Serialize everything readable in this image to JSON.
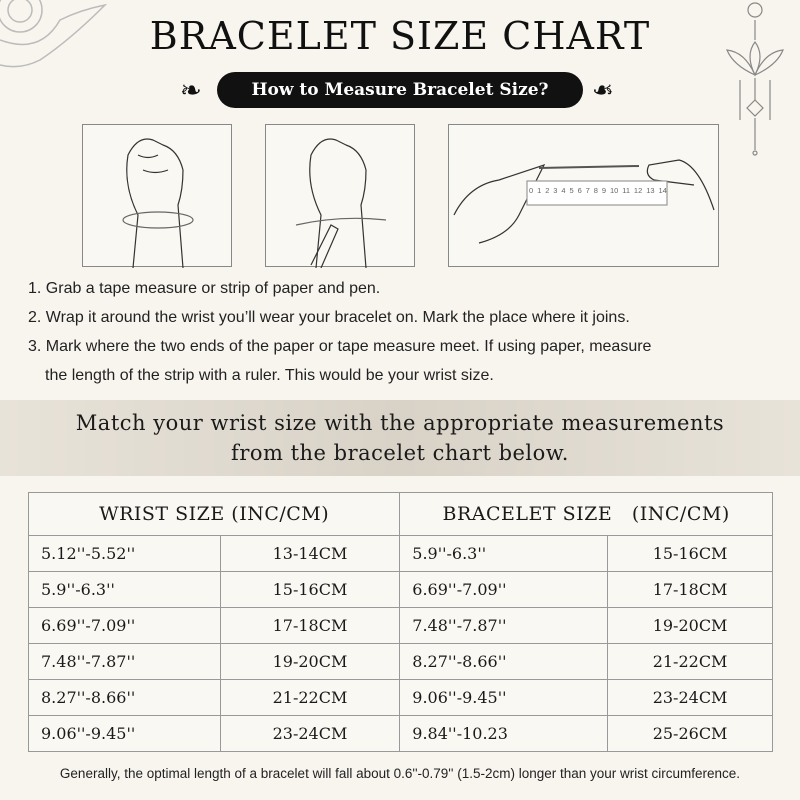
{
  "title": "BRACELET SIZE CHART",
  "subtitle": "How to Measure Bracelet Size?",
  "ruler_numbers": [
    "0",
    "1",
    "2",
    "3",
    "4",
    "5",
    "6",
    "7",
    "8",
    "9",
    "10",
    "11",
    "12",
    "13",
    "14"
  ],
  "steps": [
    "1. Grab a tape measure or strip of paper and pen.",
    "2. Wrap it around the wrist you’ll wear your bracelet on. Mark the place where it joins.",
    "3. Mark where the two ends of the paper or tape measure meet. If using paper, measure",
    "the length of the strip with a ruler. This would be your wrist size."
  ],
  "match_text": {
    "line1": "Match your wrist size with the appropriate measurements",
    "line2": "from the bracelet chart below."
  },
  "table": {
    "headers": [
      "WRIST SIZE (INC/CM)",
      "BRACELET SIZE   (INC/CM)"
    ],
    "rows": [
      [
        "5.12''-5.52''",
        "13-14CM",
        "5.9''-6.3''",
        "15-16CM"
      ],
      [
        "5.9''-6.3''",
        "15-16CM",
        "6.69''-7.09''",
        "17-18CM"
      ],
      [
        "6.69''-7.09''",
        "17-18CM",
        "7.48''-7.87''",
        "19-20CM"
      ],
      [
        "7.48''-7.87''",
        "19-20CM",
        "8.27''-8.66''",
        "21-22CM"
      ],
      [
        "8.27''-8.66''",
        "21-22CM",
        "9.06''-9.45''",
        "23-24CM"
      ],
      [
        "9.06''-9.45''",
        "23-24CM",
        "9.84''-10.23",
        "25-26CM"
      ]
    ]
  },
  "footnote": "Generally, the optimal length of a bracelet will fall about 0.6''-0.79'' (1.5-2cm) longer than your wrist circumference."
}
